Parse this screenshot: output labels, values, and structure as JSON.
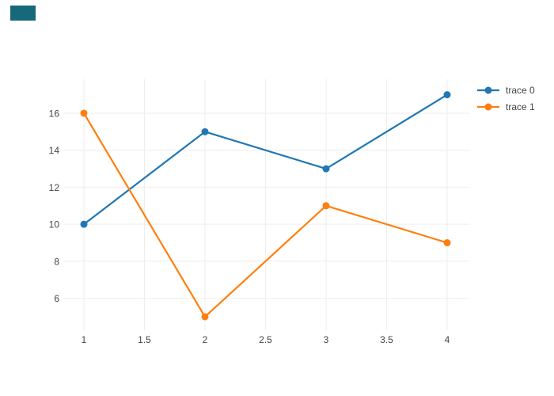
{
  "corner_badge": {
    "color": "#16697a"
  },
  "colors": {
    "background": "#ffffff",
    "grid": "#eeeeee",
    "tick_label": "#444444"
  },
  "chart_data": {
    "type": "line",
    "title": "",
    "xlabel": "",
    "ylabel": "",
    "x": [
      1,
      2,
      3,
      4
    ],
    "series": [
      {
        "name": "trace 0",
        "color": "#1f77b4",
        "values": [
          10,
          15,
          13,
          17
        ]
      },
      {
        "name": "trace 1",
        "color": "#ff7f0e",
        "values": [
          16,
          5,
          11,
          9
        ]
      }
    ],
    "xticks": [
      1,
      1.5,
      2,
      2.5,
      3,
      3.5,
      4
    ],
    "xtick_labels": [
      "1",
      "1.5",
      "2",
      "2.5",
      "3",
      "3.5",
      "4"
    ],
    "yticks": [
      6,
      8,
      10,
      12,
      14,
      16
    ],
    "ytick_labels": [
      "6",
      "8",
      "10",
      "12",
      "14",
      "16"
    ],
    "xlim": [
      0.83,
      4.183
    ],
    "ylim": [
      4.27,
      17.84
    ],
    "grid": true,
    "legend_position": "top-right-outside",
    "marker_radius": 4.5,
    "line_width": 2.2
  }
}
